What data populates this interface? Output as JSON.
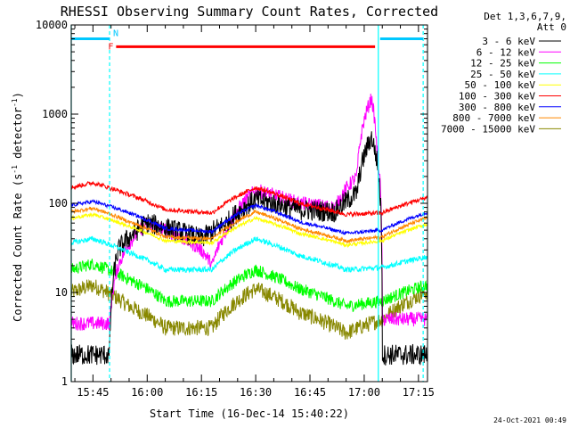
{
  "chart_data": {
    "type": "line",
    "title": "RHESSI Observing Summary Count Rates, Corrected",
    "xlabel": "Start Time (16-Dec-14 15:40:22)",
    "ylabel_main": "Corrected Count Rate (s",
    "ylabel_sup": "-1",
    "ylabel_mid": " detector",
    "ylabel_tail": ")",
    "yscale": "log",
    "ylim": [
      1,
      10000
    ],
    "xlim_minutes": [
      -1.0,
      97.5
    ],
    "x_ticks": [
      {
        "label": "15:45",
        "minute": 5
      },
      {
        "label": "16:00",
        "minute": 20
      },
      {
        "label": "16:15",
        "minute": 35
      },
      {
        "label": "16:30",
        "minute": 50
      },
      {
        "label": "16:45",
        "minute": 65
      },
      {
        "label": "17:00",
        "minute": 80
      },
      {
        "label": "17:15",
        "minute": 95
      }
    ],
    "y_ticks": [
      {
        "label": "1",
        "value": 1
      },
      {
        "label": "10",
        "value": 10
      },
      {
        "label": "100",
        "value": 100
      },
      {
        "label": "1000",
        "value": 1000
      },
      {
        "label": "10000",
        "value": 10000
      }
    ],
    "legend_header": [
      "Det 1,3,6,7,9,",
      "Att 0"
    ],
    "legend_position": "right",
    "series": [
      {
        "name": "3 - 6 keV",
        "color": "#000000"
      },
      {
        "name": "6 - 12 keV",
        "color": "#ff00ff"
      },
      {
        "name": "12 - 25 keV",
        "color": "#00ff00"
      },
      {
        "name": "25 - 50 keV",
        "color": "#00ffff"
      },
      {
        "name": "50 - 100 keV",
        "color": "#ffff00"
      },
      {
        "name": "100 - 300 keV",
        "color": "#ff0000"
      },
      {
        "name": "300 - 800 keV",
        "color": "#0000ff"
      },
      {
        "name": "800 - 7000 keV",
        "color": "#ff8800"
      },
      {
        "name": "7000 - 15000 keV",
        "color": "#888800"
      }
    ],
    "annotations": [
      {
        "label": "N",
        "color": "#00c8ff",
        "start_minute": -1.0,
        "end_minute": 9.6,
        "level": 7000
      },
      {
        "label": "",
        "color": "#00c8ff",
        "start_minute": 84.4,
        "end_minute": 96.3,
        "level": 7000
      },
      {
        "label": "F",
        "color": "#ff0000",
        "start_minute": 11.4,
        "end_minute": 83.0,
        "level": 5700
      }
    ],
    "vertical_markers": [
      {
        "minute": -1.0,
        "color": "#00ffff",
        "style": "solid"
      },
      {
        "minute": 9.6,
        "color": "#00ffff",
        "style": "dashed"
      },
      {
        "minute": 83.9,
        "color": "#00ffff",
        "style": "solid"
      },
      {
        "minute": 96.3,
        "color": "#00ffff",
        "style": "dashed"
      }
    ]
  },
  "footer": {
    "timestamp": "24-Oct-2021 00:49"
  }
}
